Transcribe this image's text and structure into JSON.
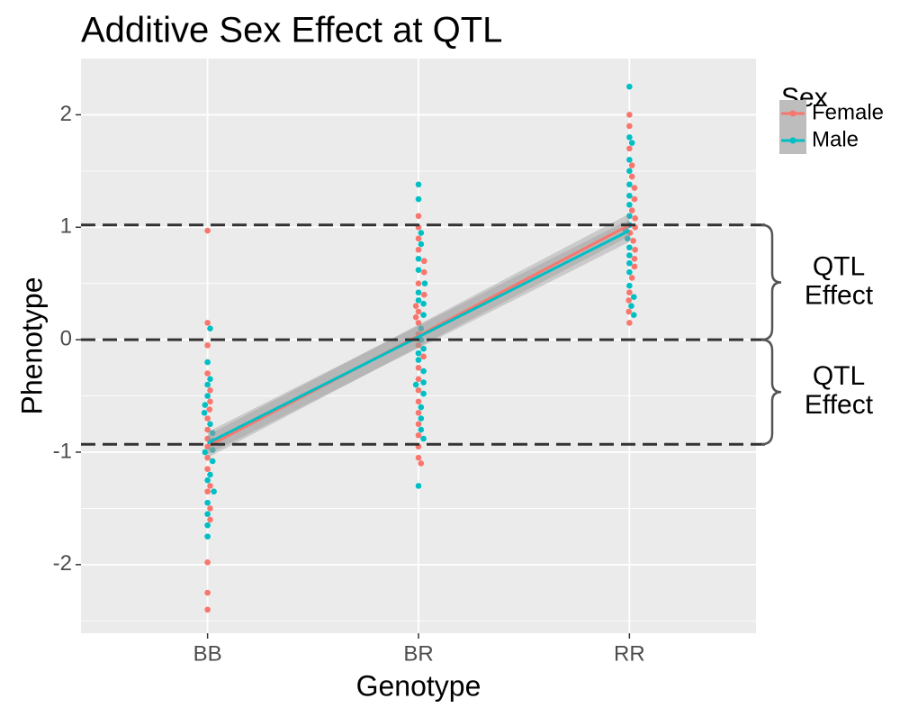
{
  "chart_data": {
    "type": "beeswarm",
    "title": "Additive Sex Effect at QTL",
    "x_label": "Genotype",
    "y_label": "Phenotype",
    "categories": [
      "BB",
      "BR",
      "RR"
    ],
    "ylim": [
      -2.61,
      2.5
    ],
    "yticks": [
      -2,
      -1,
      0,
      1,
      2
    ],
    "minor_yticks": [
      -2.5,
      -1.5,
      -0.5,
      0.5,
      1.5
    ],
    "grid": true,
    "legend_title": "Sex",
    "legend_position": "right",
    "series": [
      {
        "name": "Female",
        "color": "#F8766D",
        "x": [
          "BB",
          "BB",
          "BB",
          "BB",
          "BB",
          "BB",
          "BB",
          "BB",
          "BB",
          "BB",
          "BB",
          "BB",
          "BB",
          "BB",
          "BB",
          "BB",
          "BB",
          "BB",
          "BB",
          "BB",
          "BR",
          "BR",
          "BR",
          "BR",
          "BR",
          "BR",
          "BR",
          "BR",
          "BR",
          "BR",
          "BR",
          "BR",
          "BR",
          "BR",
          "BR",
          "BR",
          "BR",
          "BR",
          "BR",
          "BR",
          "BR",
          "BR",
          "BR",
          "BR",
          "BR",
          "RR",
          "RR",
          "RR",
          "RR",
          "RR",
          "RR",
          "RR",
          "RR",
          "RR",
          "RR",
          "RR",
          "RR",
          "RR",
          "RR",
          "RR",
          "RR",
          "RR",
          "RR",
          "RR",
          "RR"
        ],
        "values": [
          0.97,
          0.15,
          -0.05,
          -0.3,
          -0.45,
          -0.55,
          -0.62,
          -0.7,
          -0.8,
          -0.88,
          -0.95,
          -1.05,
          -1.15,
          -1.3,
          -1.35,
          -1.5,
          -1.6,
          -1.98,
          -2.25,
          -2.4,
          1.1,
          1.0,
          0.9,
          0.8,
          0.7,
          0.6,
          0.5,
          0.4,
          0.3,
          0.2,
          0.15,
          0.05,
          -0.05,
          -0.15,
          -0.25,
          -0.35,
          -0.45,
          -0.55,
          -0.65,
          -0.75,
          -0.85,
          -0.95,
          -1.05,
          -1.1,
          0.25,
          2.0,
          1.9,
          1.7,
          1.55,
          1.45,
          1.35,
          1.25,
          1.15,
          1.08,
          1.0,
          0.95,
          0.88,
          0.8,
          0.72,
          0.65,
          0.55,
          0.42,
          0.35,
          0.25,
          0.15
        ],
        "fit": {
          "x": [
            "BB",
            "RR"
          ],
          "values": [
            -0.95,
            1.02
          ],
          "lower": [
            -1.05,
            0.92
          ],
          "upper": [
            -0.85,
            1.12
          ]
        }
      },
      {
        "name": "Male",
        "color": "#00BFC4",
        "x": [
          "BB",
          "BB",
          "BB",
          "BB",
          "BB",
          "BB",
          "BB",
          "BB",
          "BB",
          "BB",
          "BB",
          "BB",
          "BB",
          "BB",
          "BB",
          "BB",
          "BB",
          "BB",
          "BB",
          "BB",
          "BR",
          "BR",
          "BR",
          "BR",
          "BR",
          "BR",
          "BR",
          "BR",
          "BR",
          "BR",
          "BR",
          "BR",
          "BR",
          "BR",
          "BR",
          "BR",
          "BR",
          "BR",
          "BR",
          "BR",
          "BR",
          "BR",
          "BR",
          "BR",
          "BR",
          "RR",
          "RR",
          "RR",
          "RR",
          "RR",
          "RR",
          "RR",
          "RR",
          "RR",
          "RR",
          "RR",
          "RR",
          "RR",
          "RR",
          "RR",
          "RR",
          "RR",
          "RR",
          "RR",
          "RR"
        ],
        "values": [
          0.1,
          -0.2,
          -0.4,
          -0.5,
          -0.58,
          -0.65,
          -0.75,
          -0.83,
          -0.9,
          -0.98,
          -1.08,
          -1.2,
          -1.25,
          -1.35,
          -1.45,
          -1.55,
          -1.65,
          -1.75,
          -0.35,
          -1.0,
          1.38,
          1.25,
          0.95,
          0.85,
          0.72,
          0.62,
          0.5,
          0.42,
          0.32,
          0.22,
          0.1,
          0.0,
          -0.08,
          -0.18,
          -0.28,
          -0.38,
          -0.48,
          -0.6,
          -0.7,
          -0.8,
          -0.88,
          -1.3,
          -0.4,
          0.35,
          -0.12,
          2.25,
          1.8,
          1.75,
          1.6,
          1.5,
          1.38,
          1.28,
          1.2,
          1.1,
          1.02,
          0.98,
          0.9,
          0.82,
          0.75,
          0.68,
          0.6,
          0.48,
          0.38,
          0.3,
          0.22
        ],
        "fit": {
          "x": [
            "BB",
            "RR"
          ],
          "values": [
            -0.92,
            0.97
          ],
          "lower": [
            -1.02,
            0.87
          ],
          "upper": [
            -0.82,
            1.07
          ]
        }
      }
    ],
    "reference_lines": [
      1.02,
      0,
      -0.93
    ],
    "annotations": [
      {
        "lines": [
          "QTL",
          "Effect"
        ],
        "from": 0,
        "to": 1.02
      },
      {
        "lines": [
          "QTL",
          "Effect"
        ],
        "from": -0.93,
        "to": 0
      }
    ]
  }
}
